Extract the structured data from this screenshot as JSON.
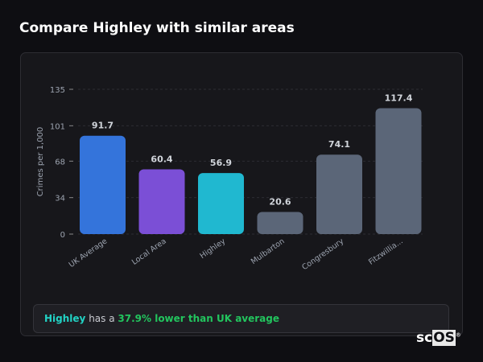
{
  "title": "Compare Highley with similar areas",
  "chart_data": {
    "type": "bar",
    "ylabel": "Crimes per 1,000",
    "ylim": [
      0,
      135
    ],
    "yticks": [
      0,
      34,
      68,
      101,
      135
    ],
    "grid": true,
    "categories": [
      "UK Average",
      "Local Area",
      "Highley",
      "Mulbarton",
      "Congresbury",
      "Fitzwillia..."
    ],
    "values": [
      91.7,
      60.4,
      56.9,
      20.6,
      74.1,
      117.4
    ],
    "value_labels": [
      "91.7",
      "60.4",
      "56.9",
      "20.6",
      "74.1",
      "117.4"
    ],
    "colors": [
      "#3474db",
      "#7b4fd6",
      "#20b8d0",
      "#5b6678",
      "#5b6678",
      "#5b6678"
    ]
  },
  "summary": {
    "area": "Highley",
    "middle": " has a ",
    "comparison": "37.9% lower than UK average"
  },
  "logo": {
    "text_a": "sc",
    "text_b": "OS",
    "mark": "®"
  }
}
